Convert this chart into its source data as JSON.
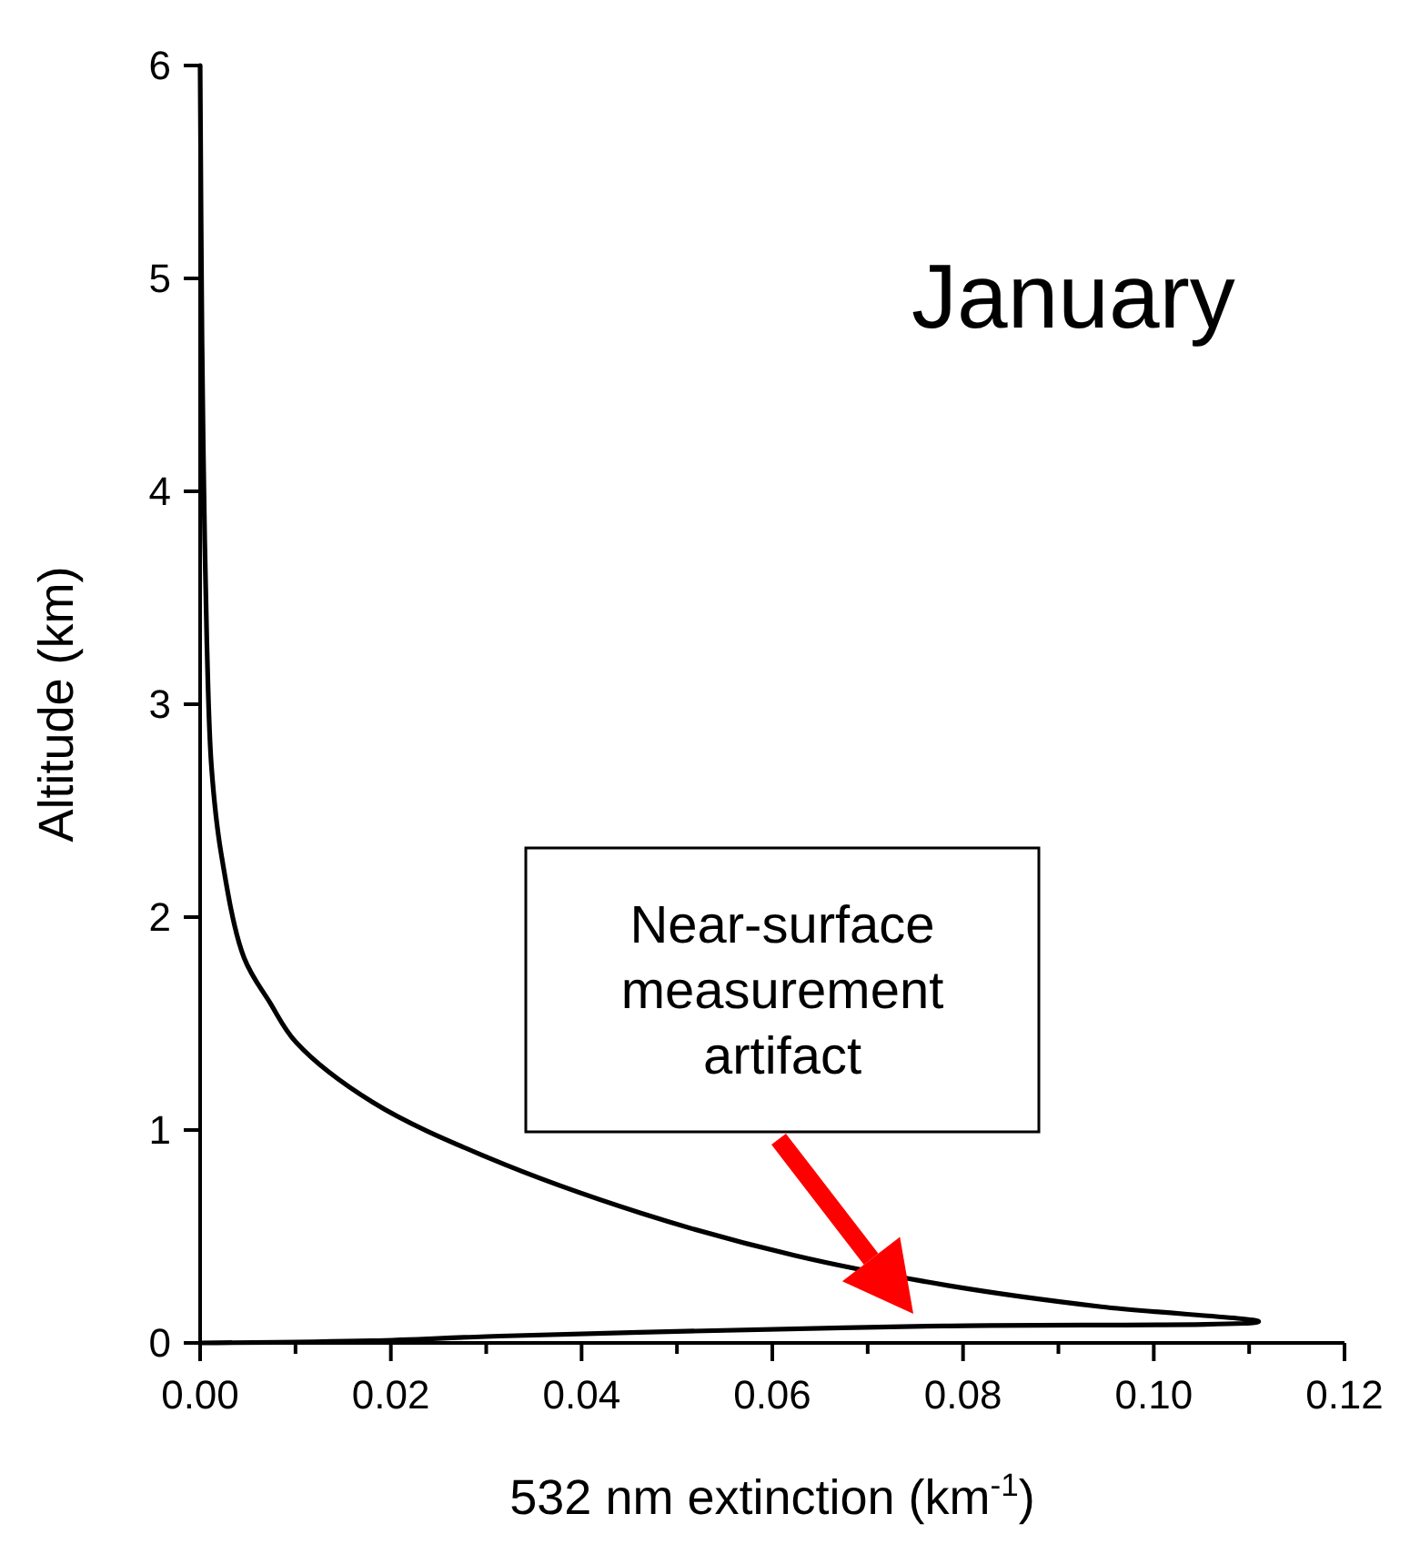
{
  "chart_data": {
    "type": "line",
    "title": "January",
    "xlabel": "532 nm extinction (km$^{-1}$)",
    "ylabel": "Altitude (km)",
    "x": [
      0,
      0.0002,
      0.0004,
      0.0007,
      0.0012,
      0.0022,
      0.0046,
      0.0073,
      0.0101,
      0.0181,
      0.0302,
      0.0462,
      0.0624,
      0.0784,
      0.0945,
      0.111,
      0.078,
      0.046,
      0.03,
      0.018,
      0
    ],
    "series": [
      {
        "color": "#000000",
        "values": [
          6,
          4.7,
          4,
          3.3,
          2.7,
          2.3,
          1.81,
          1.6,
          1.41,
          1.13,
          0.87,
          0.61,
          0.41,
          0.27,
          0.17,
          0.1,
          0.08,
          0.05,
          0.03,
          0.01,
          0
        ]
      }
    ],
    "xlim": [
      0,
      0.12
    ],
    "ylim": [
      0,
      6
    ],
    "xticks": [
      {
        "value": 0,
        "label": "0.00"
      },
      {
        "value": 0.01,
        "label": null
      },
      {
        "value": 0.02,
        "label": "0.02"
      },
      {
        "value": 0.03,
        "label": null
      },
      {
        "value": 0.04,
        "label": "0.04"
      },
      {
        "value": 0.05,
        "label": null
      },
      {
        "value": 0.06,
        "label": "0.06"
      },
      {
        "value": 0.07,
        "label": null
      },
      {
        "value": 0.08,
        "label": "0.08"
      },
      {
        "value": 0.09,
        "label": null
      },
      {
        "value": 0.1,
        "label": "0.10"
      },
      {
        "value": 0.11,
        "label": null
      },
      {
        "value": 0.12,
        "label": "0.12"
      }
    ],
    "yticks": [
      0,
      1,
      2,
      3,
      4,
      5,
      6
    ],
    "annotations": [
      "Near-surface measurement artifact"
    ],
    "grid": false,
    "marker": "none",
    "line_style": "solid"
  }
}
